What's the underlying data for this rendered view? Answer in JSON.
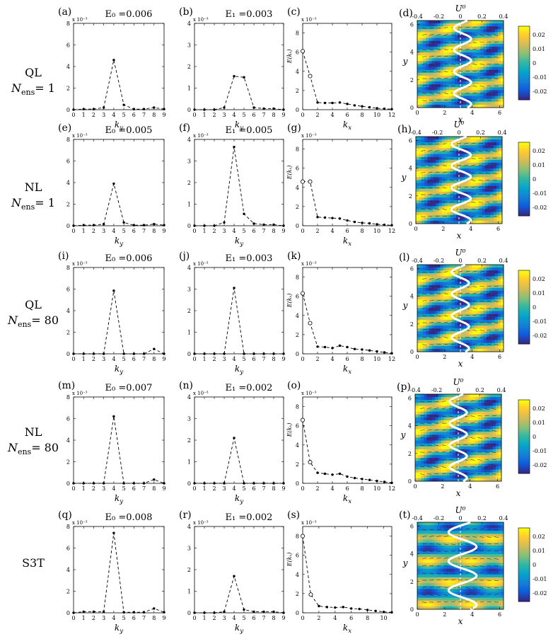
{
  "colorbar_ticks": [
    "0.02",
    "0.01",
    "0",
    "-0.01",
    "-0.02"
  ],
  "top_axis_ticks": [
    "-0.4",
    "-0.2",
    "0",
    "0.2",
    "0.4"
  ],
  "top_axis_label": "U⁰",
  "exponent_label": "x 10⁻³",
  "ey_label": "E(kₓ)",
  "colormap": [
    "#352a87",
    "#0f5cdd",
    "#1481d6",
    "#06a4ca",
    "#2eb7a4",
    "#87bf77",
    "#d1bb59",
    "#fec832",
    "#f9fb0e"
  ],
  "rows": [
    {
      "label_line1": "QL",
      "label_line2": "N",
      "label_sub": "ens",
      "label_val": "= 1"
    },
    {
      "label_line1": "NL",
      "label_line2": "N",
      "label_sub": "ens",
      "label_val": "= 1"
    },
    {
      "label_line1": "QL",
      "label_line2": "N",
      "label_sub": "ens",
      "label_val": "= 80"
    },
    {
      "label_line1": "NL",
      "label_line2": "N",
      "label_sub": "ens",
      "label_val": "= 80"
    },
    {
      "label_line1": "S3T",
      "label_line2": "",
      "label_sub": "",
      "label_val": ""
    }
  ],
  "chart_data": [
    {
      "panel": "(a)",
      "type": "line",
      "title": "E₀ =0.006",
      "xlabel": "k_y",
      "ylabel": "",
      "x": [
        0,
        1,
        2,
        3,
        4,
        5,
        6,
        7,
        8,
        9
      ],
      "values": [
        0,
        0.05,
        0.05,
        0.2,
        4.6,
        0.45,
        0.05,
        0.05,
        0.2,
        0.05
      ],
      "xlim": [
        0,
        9
      ],
      "ylim": [
        0,
        8
      ],
      "yticks": [
        0,
        2,
        4,
        6,
        8
      ]
    },
    {
      "panel": "(b)",
      "type": "line",
      "title": "E₁ =0.003",
      "xlabel": "k_y",
      "ylabel": "",
      "x": [
        0,
        1,
        2,
        3,
        4,
        5,
        6,
        7,
        8,
        9
      ],
      "values": [
        0,
        0,
        0,
        0.1,
        1.55,
        1.5,
        0.1,
        0.05,
        0.05,
        0
      ],
      "xlim": [
        0,
        9
      ],
      "ylim": [
        0,
        4
      ],
      "yticks": [
        0,
        1,
        2,
        3,
        4
      ]
    },
    {
      "panel": "(c)",
      "type": "line",
      "title": "",
      "xlabel": "k_x",
      "ylabel": "E(k_x)",
      "x": [
        0,
        1,
        2,
        3,
        4,
        5,
        6,
        7,
        8,
        9,
        10,
        11,
        12
      ],
      "values": [
        6.1,
        3.5,
        0.75,
        0.7,
        0.7,
        0.75,
        0.6,
        0.45,
        0.35,
        0.25,
        0.15,
        0.1,
        0.05
      ],
      "xlim": [
        0,
        12
      ],
      "ylim": [
        0,
        9
      ],
      "yticks": [
        0,
        2,
        4,
        6,
        8
      ]
    },
    {
      "panel": "(d)",
      "type": "heatmap",
      "title": "",
      "xlabel": "x",
      "ylabel": "y",
      "xlim": [
        0,
        6.28
      ],
      "ylim": [
        0,
        6.28
      ],
      "xticks": [
        0,
        2,
        4,
        6
      ],
      "yticks": [
        0,
        2,
        4,
        6
      ],
      "mode_ky": 4,
      "mode_kx": 1,
      "profile_amp": 0.08,
      "profile_ky": 4,
      "profile_mix": 0.02
    },
    {
      "panel": "(e)",
      "type": "line",
      "title": "E₀ =0.005",
      "xlabel": "k_y",
      "ylabel": "",
      "x": [
        0,
        1,
        2,
        3,
        4,
        5,
        6,
        7,
        8,
        9
      ],
      "values": [
        0,
        0.05,
        0.05,
        0.15,
        3.9,
        0.3,
        0.05,
        0.05,
        0.15,
        0.05
      ],
      "xlim": [
        0,
        9
      ],
      "ylim": [
        0,
        8
      ],
      "yticks": [
        0,
        2,
        4,
        6,
        8
      ]
    },
    {
      "panel": "(f)",
      "type": "line",
      "title": "E₁ =0.005",
      "xlabel": "k_y",
      "ylabel": "",
      "x": [
        0,
        1,
        2,
        3,
        4,
        5,
        6,
        7,
        8,
        9
      ],
      "values": [
        0,
        0,
        0,
        0.15,
        3.65,
        0.55,
        0.1,
        0.05,
        0.05,
        0
      ],
      "xlim": [
        0,
        9
      ],
      "ylim": [
        0,
        4
      ],
      "yticks": [
        0,
        1,
        2,
        3,
        4
      ]
    },
    {
      "panel": "(g)",
      "type": "line",
      "title": "",
      "xlabel": "k_x",
      "ylabel": "E(k_x)",
      "x": [
        0,
        1,
        2,
        3,
        4,
        5,
        6,
        7,
        8,
        9,
        10,
        11,
        12
      ],
      "values": [
        4.6,
        4.6,
        0.9,
        0.85,
        0.8,
        0.75,
        0.55,
        0.4,
        0.3,
        0.25,
        0.15,
        0.1,
        0.05
      ],
      "xlim": [
        0,
        12
      ],
      "ylim": [
        0,
        9
      ],
      "yticks": [
        0,
        2,
        4,
        6,
        8
      ]
    },
    {
      "panel": "(h)",
      "type": "heatmap",
      "title": "",
      "xlabel": "x",
      "ylabel": "y",
      "xlim": [
        0,
        6.28
      ],
      "ylim": [
        0,
        6.28
      ],
      "xticks": [
        0,
        2,
        4,
        6
      ],
      "yticks": [
        0,
        2,
        4,
        6
      ],
      "mode_ky": 4,
      "mode_kx": 1,
      "profile_amp": 0.09,
      "profile_ky": 4,
      "profile_mix": 0.02
    },
    {
      "panel": "(i)",
      "type": "line",
      "title": "E₀ =0.006",
      "xlabel": "k_y",
      "ylabel": "",
      "x": [
        0,
        1,
        2,
        3,
        4,
        5,
        6,
        7,
        8,
        9
      ],
      "values": [
        0,
        0,
        0,
        0,
        5.85,
        0,
        0,
        0,
        0.45,
        0
      ],
      "xlim": [
        0,
        9
      ],
      "ylim": [
        0,
        8
      ],
      "yticks": [
        0,
        2,
        4,
        6,
        8
      ]
    },
    {
      "panel": "(j)",
      "type": "line",
      "title": "E₁ =0.003",
      "xlabel": "k_y",
      "ylabel": "",
      "x": [
        0,
        1,
        2,
        3,
        4,
        5,
        6,
        7,
        8,
        9
      ],
      "values": [
        0,
        0,
        0,
        0,
        3.05,
        0,
        0,
        0,
        0,
        0
      ],
      "xlim": [
        0,
        9
      ],
      "ylim": [
        0,
        4
      ],
      "yticks": [
        0,
        1,
        2,
        3,
        4
      ]
    },
    {
      "panel": "(k)",
      "type": "line",
      "title": "",
      "xlabel": "k_x",
      "ylabel": "E(k_x)",
      "x": [
        0,
        1,
        2,
        3,
        4,
        5,
        6,
        7,
        8,
        9,
        10,
        11,
        12
      ],
      "values": [
        6.3,
        3.2,
        0.75,
        0.7,
        0.6,
        0.85,
        0.7,
        0.5,
        0.45,
        0.35,
        0.25,
        0.15,
        0.05
      ],
      "xlim": [
        0,
        12
      ],
      "ylim": [
        0,
        9
      ],
      "yticks": [
        0,
        2,
        4,
        6,
        8
      ]
    },
    {
      "panel": "(l)",
      "type": "heatmap",
      "title": "",
      "xlabel": "x",
      "ylabel": "y",
      "xlim": [
        0,
        6.28
      ],
      "ylim": [
        0,
        6.28
      ],
      "xticks": [
        0,
        2,
        4,
        6
      ],
      "yticks": [
        0,
        2,
        4,
        6
      ],
      "mode_ky": 4,
      "mode_kx": 1,
      "profile_amp": 0.08,
      "profile_ky": 4,
      "profile_mix": 0
    },
    {
      "panel": "(m)",
      "type": "line",
      "title": "E₀ =0.007",
      "xlabel": "k_y",
      "ylabel": "",
      "x": [
        0,
        1,
        2,
        3,
        4,
        5,
        6,
        7,
        8,
        9
      ],
      "values": [
        0,
        0,
        0,
        0,
        6.2,
        0,
        0,
        0,
        0.35,
        0
      ],
      "xlim": [
        0,
        9
      ],
      "ylim": [
        0,
        8
      ],
      "yticks": [
        0,
        2,
        4,
        6,
        8
      ]
    },
    {
      "panel": "(n)",
      "type": "line",
      "title": "E₁ =0.002",
      "xlabel": "k_y",
      "ylabel": "",
      "x": [
        0,
        1,
        2,
        3,
        4,
        5,
        6,
        7,
        8,
        9
      ],
      "values": [
        0,
        0,
        0,
        0,
        2.1,
        0,
        0,
        0,
        0,
        0
      ],
      "xlim": [
        0,
        9
      ],
      "ylim": [
        0,
        4
      ],
      "yticks": [
        0,
        1,
        2,
        3,
        4
      ]
    },
    {
      "panel": "(o)",
      "type": "line",
      "title": "",
      "xlabel": "k_x",
      "ylabel": "E(k_x)",
      "x": [
        0,
        1,
        2,
        3,
        4,
        5,
        6,
        7,
        8,
        9,
        10,
        11,
        12
      ],
      "values": [
        6.6,
        2.2,
        1.1,
        1.0,
        0.9,
        1.0,
        0.7,
        0.55,
        0.45,
        0.35,
        0.25,
        0.15,
        0.05
      ],
      "xlim": [
        0,
        12
      ],
      "ylim": [
        0,
        9
      ],
      "yticks": [
        0,
        2,
        4,
        6,
        8
      ]
    },
    {
      "panel": "(p)",
      "type": "heatmap",
      "title": "",
      "xlabel": "x",
      "ylabel": "y",
      "xlim": [
        0,
        6.28
      ],
      "ylim": [
        0,
        6.28
      ],
      "xticks": [
        0,
        2,
        4,
        6
      ],
      "yticks": [
        0,
        2,
        4,
        6
      ],
      "mode_ky": 4,
      "mode_kx": 1,
      "profile_amp": 0.08,
      "profile_ky": 4,
      "profile_mix": 0
    },
    {
      "panel": "(q)",
      "type": "line",
      "title": "E₀ =0.008",
      "xlabel": "k_y",
      "ylabel": "",
      "x": [
        0,
        1,
        2,
        3,
        4,
        5,
        6,
        7,
        8,
        9
      ],
      "values": [
        0,
        0.1,
        0.1,
        0.1,
        7.4,
        0.05,
        0.05,
        0.05,
        0.4,
        0.05
      ],
      "xlim": [
        0,
        9
      ],
      "ylim": [
        0,
        8
      ],
      "yticks": [
        0,
        2,
        4,
        6,
        8
      ]
    },
    {
      "panel": "(r)",
      "type": "line",
      "title": "E₁ =0.002",
      "xlabel": "k_y",
      "ylabel": "",
      "x": [
        0,
        1,
        2,
        3,
        4,
        5,
        6,
        7,
        8,
        9
      ],
      "values": [
        0,
        0,
        0,
        0.05,
        1.7,
        0.15,
        0.05,
        0.05,
        0.05,
        0
      ],
      "xlim": [
        0,
        9
      ],
      "ylim": [
        0,
        4
      ],
      "yticks": [
        0,
        1,
        2,
        3,
        4
      ]
    },
    {
      "panel": "(s)",
      "type": "line",
      "title": "",
      "xlabel": "k_x",
      "ylabel": "E(k_x)",
      "x": [
        0,
        1,
        2,
        3,
        4,
        5,
        6,
        7,
        8,
        9,
        10,
        11
      ],
      "values": [
        8.0,
        1.9,
        0.7,
        0.6,
        0.55,
        0.6,
        0.45,
        0.4,
        0.3,
        0.2,
        0.1,
        0.05
      ],
      "xlim": [
        0,
        11
      ],
      "ylim": [
        0,
        9
      ],
      "yticks": [
        0,
        2,
        4,
        6,
        8
      ]
    },
    {
      "panel": "(t)",
      "type": "heatmap",
      "title": "",
      "xlabel": "x",
      "ylabel": "y",
      "xlim": [
        0,
        6.28
      ],
      "ylim": [
        0,
        6.28
      ],
      "xticks": [
        0,
        2,
        4,
        6
      ],
      "yticks": [
        0,
        2,
        4,
        6
      ],
      "mode_ky": 4,
      "mode_kx": 0,
      "profile_amp": 0.13,
      "profile_ky": 3,
      "profile_mix": 0.02
    }
  ]
}
